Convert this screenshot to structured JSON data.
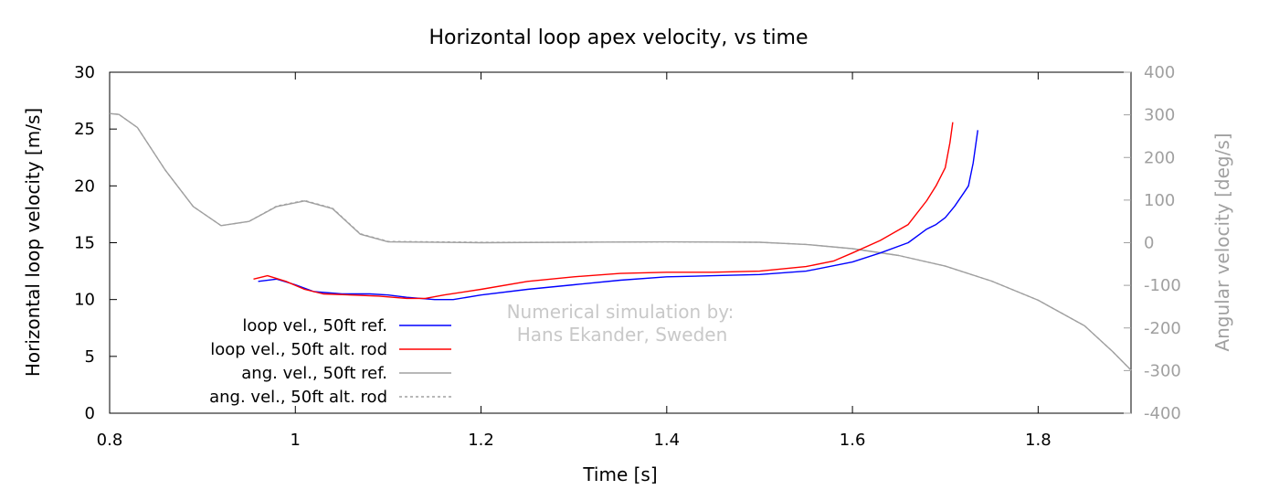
{
  "chart_data": {
    "type": "line",
    "title": "Horizontal loop apex velocity, vs time",
    "xlabel": "Time [s]",
    "ylabel": "Horizontal loop velocity [m/s]",
    "y2label": "Angular velocity [deg/s]",
    "xlim": [
      0.8,
      1.9
    ],
    "ylim": [
      0,
      30
    ],
    "y2lim": [
      -400,
      400
    ],
    "xticks": [
      "0.8",
      "1",
      "1.2",
      "1.4",
      "1.6",
      "1.8"
    ],
    "yticks": [
      "0",
      "5",
      "10",
      "15",
      "20",
      "25",
      "30"
    ],
    "y2ticks": [
      "-400",
      "-300",
      "-200",
      "-100",
      "0",
      "100",
      "200",
      "300",
      "400"
    ],
    "grid": false,
    "legend_position": "bottom-left",
    "annotation_lines": [
      "Numerical simulation by:",
      "Hans Ekander, Sweden"
    ],
    "series": [
      {
        "name": "loop vel., 50ft ref.",
        "axis": "left",
        "color": "#0000ff",
        "dash": "solid",
        "points": [
          [
            0.96,
            11.6
          ],
          [
            0.98,
            11.8
          ],
          [
            1.0,
            11.3
          ],
          [
            1.02,
            10.7
          ],
          [
            1.05,
            10.5
          ],
          [
            1.08,
            10.5
          ],
          [
            1.1,
            10.4
          ],
          [
            1.12,
            10.2
          ],
          [
            1.15,
            10.0
          ],
          [
            1.17,
            10.0
          ],
          [
            1.2,
            10.4
          ],
          [
            1.25,
            10.9
          ],
          [
            1.3,
            11.3
          ],
          [
            1.35,
            11.7
          ],
          [
            1.4,
            12.0
          ],
          [
            1.45,
            12.1
          ],
          [
            1.5,
            12.2
          ],
          [
            1.55,
            12.5
          ],
          [
            1.6,
            13.3
          ],
          [
            1.63,
            14.1
          ],
          [
            1.66,
            15.0
          ],
          [
            1.68,
            16.2
          ],
          [
            1.69,
            16.6
          ],
          [
            1.7,
            17.2
          ],
          [
            1.71,
            18.2
          ],
          [
            1.72,
            19.4
          ],
          [
            1.725,
            20.0
          ],
          [
            1.73,
            22.0
          ],
          [
            1.735,
            24.9
          ]
        ]
      },
      {
        "name": "loop vel., 50ft alt. rod",
        "axis": "left",
        "color": "#ff0000",
        "dash": "solid",
        "points": [
          [
            0.955,
            11.8
          ],
          [
            0.97,
            12.1
          ],
          [
            0.99,
            11.6
          ],
          [
            1.01,
            10.9
          ],
          [
            1.03,
            10.5
          ],
          [
            1.06,
            10.4
          ],
          [
            1.09,
            10.3
          ],
          [
            1.12,
            10.1
          ],
          [
            1.14,
            10.1
          ],
          [
            1.16,
            10.4
          ],
          [
            1.2,
            10.9
          ],
          [
            1.25,
            11.6
          ],
          [
            1.3,
            12.0
          ],
          [
            1.35,
            12.3
          ],
          [
            1.4,
            12.4
          ],
          [
            1.45,
            12.4
          ],
          [
            1.5,
            12.5
          ],
          [
            1.55,
            12.9
          ],
          [
            1.58,
            13.4
          ],
          [
            1.6,
            14.1
          ],
          [
            1.63,
            15.2
          ],
          [
            1.66,
            16.6
          ],
          [
            1.68,
            18.7
          ],
          [
            1.69,
            20.0
          ],
          [
            1.7,
            21.6
          ],
          [
            1.705,
            23.8
          ],
          [
            1.708,
            25.6
          ]
        ]
      },
      {
        "name": "ang. vel., 50ft ref.",
        "axis": "right",
        "color": "#a0a0a0",
        "dash": "solid",
        "points": [
          [
            0.8,
            303
          ],
          [
            0.81,
            301
          ],
          [
            0.83,
            270
          ],
          [
            0.86,
            170
          ],
          [
            0.89,
            85
          ],
          [
            0.92,
            40
          ],
          [
            0.95,
            50
          ],
          [
            0.98,
            85
          ],
          [
            1.01,
            98
          ],
          [
            1.04,
            80
          ],
          [
            1.07,
            20
          ],
          [
            1.1,
            2
          ],
          [
            1.2,
            0
          ],
          [
            1.3,
            1
          ],
          [
            1.4,
            2
          ],
          [
            1.5,
            1
          ],
          [
            1.55,
            -4
          ],
          [
            1.6,
            -14
          ],
          [
            1.65,
            -30
          ],
          [
            1.7,
            -55
          ],
          [
            1.75,
            -90
          ],
          [
            1.8,
            -135
          ],
          [
            1.85,
            -195
          ],
          [
            1.88,
            -255
          ],
          [
            1.9,
            -299
          ]
        ]
      },
      {
        "name": "ang. vel., 50ft alt. rod",
        "axis": "right",
        "color": "#a0a0a0",
        "dash": "dashed",
        "points": [
          [
            0.8,
            303
          ],
          [
            0.81,
            301
          ],
          [
            0.83,
            270
          ],
          [
            0.86,
            170
          ],
          [
            0.89,
            85
          ],
          [
            0.92,
            40
          ],
          [
            0.95,
            50
          ],
          [
            0.98,
            86
          ],
          [
            1.01,
            99
          ],
          [
            1.04,
            81
          ],
          [
            1.07,
            21
          ],
          [
            1.1,
            3
          ],
          [
            1.2,
            1
          ],
          [
            1.3,
            1
          ],
          [
            1.4,
            2
          ],
          [
            1.5,
            1
          ],
          [
            1.55,
            -4
          ],
          [
            1.6,
            -14
          ],
          [
            1.65,
            -30
          ],
          [
            1.7,
            -55
          ],
          [
            1.75,
            -90
          ],
          [
            1.8,
            -135
          ],
          [
            1.85,
            -195
          ],
          [
            1.88,
            -255
          ],
          [
            1.9,
            -299
          ]
        ]
      }
    ]
  }
}
